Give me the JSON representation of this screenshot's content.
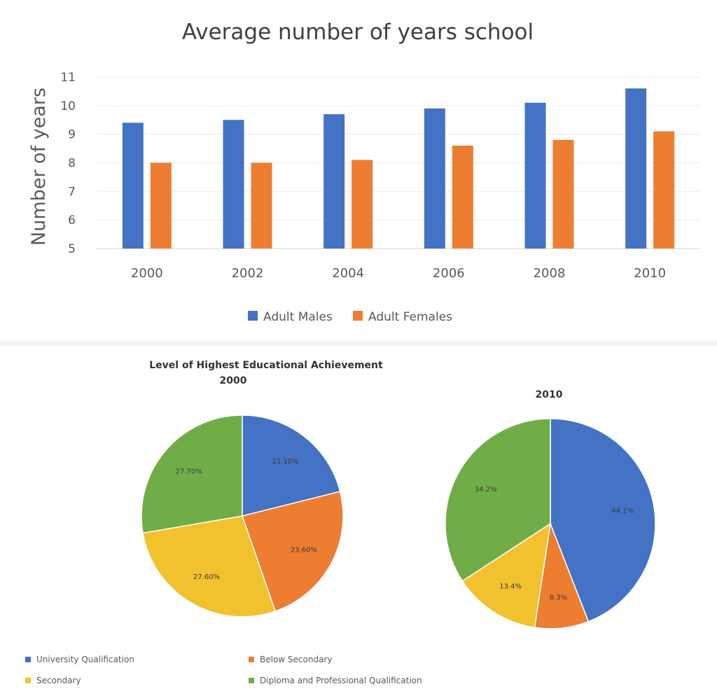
{
  "chart_data": [
    {
      "type": "bar",
      "title": "Average number of years school",
      "ylabel": "Number of years",
      "xlabel": "",
      "ylim": [
        5,
        11
      ],
      "yticks": [
        5,
        6,
        7,
        8,
        9,
        10,
        11
      ],
      "grid": true,
      "legend": "bottom",
      "categories": [
        "2000",
        "2002",
        "2004",
        "2006",
        "2008",
        "2010"
      ],
      "series": [
        {
          "name": "Adult Males",
          "color": "#4472c4",
          "values": [
            9.4,
            9.5,
            9.7,
            9.9,
            10.1,
            10.6
          ]
        },
        {
          "name": "Adult Females",
          "color": "#ed7d31",
          "values": [
            8.0,
            8.0,
            8.1,
            8.6,
            8.8,
            9.1
          ]
        }
      ]
    },
    {
      "type": "pie",
      "title": "Level of Highest Educational Achievement",
      "subtitle": "2000",
      "legend": "bottom",
      "slices": [
        {
          "name": "University Qualification",
          "value": 21.1,
          "label": "21.10%",
          "color": "#4472c4"
        },
        {
          "name": "Below Secondary",
          "value": 23.6,
          "label": "23.60%",
          "color": "#ed7d31"
        },
        {
          "name": "Secondary",
          "value": 27.6,
          "label": "27.60%",
          "color": "#f2c12e"
        },
        {
          "name": "Diploma and Professional Qualification",
          "value": 27.7,
          "label": "27.70%",
          "color": "#70ad47"
        }
      ]
    },
    {
      "type": "pie",
      "title": "",
      "subtitle": "2010",
      "slices": [
        {
          "name": "University Qualification",
          "value": 44.1,
          "label": "44.1%",
          "color": "#4472c4"
        },
        {
          "name": "Below Secondary",
          "value": 8.3,
          "label": "8.3%",
          "color": "#ed7d31"
        },
        {
          "name": "Secondary",
          "value": 13.4,
          "label": "13.4%",
          "color": "#f2c12e"
        },
        {
          "name": "Diploma and Professional Qualification",
          "value": 34.2,
          "label": "34.2%",
          "color": "#70ad47"
        }
      ]
    }
  ]
}
